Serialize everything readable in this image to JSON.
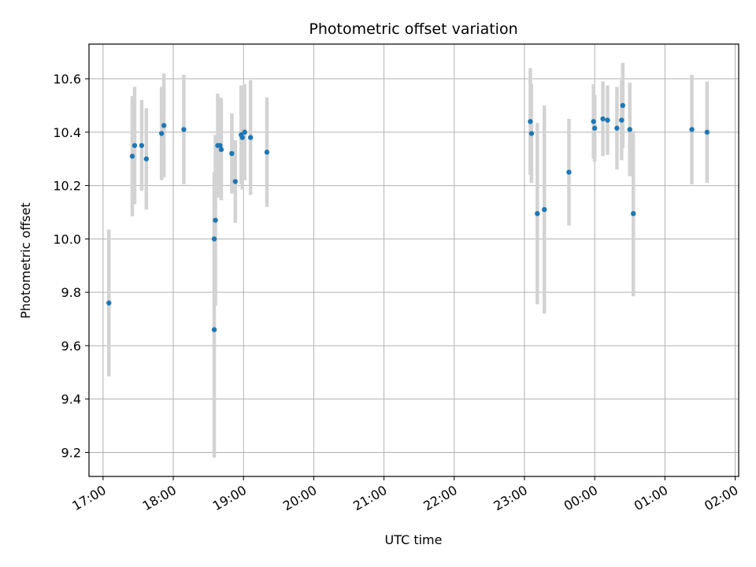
{
  "chart_data": {
    "type": "scatter",
    "title": "Photometric offset variation",
    "xlabel": "UTC time",
    "ylabel": "Photometric offset",
    "x_is_time": true,
    "xlim": [
      "16:48",
      "02:03"
    ],
    "ylim": [
      9.11,
      10.73
    ],
    "x_ticks": [
      "17:00",
      "18:00",
      "19:00",
      "20:00",
      "21:00",
      "22:00",
      "23:00",
      "00:00",
      "01:00",
      "02:00"
    ],
    "y_ticks": [
      9.2,
      9.4,
      9.6,
      9.8,
      10.0,
      10.2,
      10.4,
      10.6
    ],
    "grid": true,
    "marker_color": "#1f77b4",
    "errorbar_color": "#d3d3d3",
    "series": [
      {
        "points": [
          {
            "x": "17:05",
            "y": 9.76,
            "err": 0.275
          },
          {
            "x": "17:25",
            "y": 10.31,
            "err": 0.225
          },
          {
            "x": "17:27",
            "y": 10.35,
            "err": 0.22
          },
          {
            "x": "17:33",
            "y": 10.35,
            "err": 0.17
          },
          {
            "x": "17:37",
            "y": 10.3,
            "err": 0.19
          },
          {
            "x": "17:50",
            "y": 10.395,
            "err": 0.175
          },
          {
            "x": "17:52",
            "y": 10.425,
            "err": 0.195
          },
          {
            "x": "18:09",
            "y": 10.41,
            "err": 0.205
          },
          {
            "x": "18:35",
            "y": 9.66,
            "err": 0.48
          },
          {
            "x": "18:35",
            "y": 10.0,
            "err": 0.25
          },
          {
            "x": "18:36",
            "y": 10.07,
            "err": 0.32
          },
          {
            "x": "18:38",
            "y": 10.35,
            "err": 0.195
          },
          {
            "x": "18:40",
            "y": 10.35,
            "err": 0.18
          },
          {
            "x": "18:41",
            "y": 10.335,
            "err": 0.19
          },
          {
            "x": "18:50",
            "y": 10.32,
            "err": 0.15
          },
          {
            "x": "18:53",
            "y": 10.215,
            "err": 0.155
          },
          {
            "x": "18:58",
            "y": 10.39,
            "err": 0.185
          },
          {
            "x": "18:59",
            "y": 10.38,
            "err": 0.195
          },
          {
            "x": "19:01",
            "y": 10.4,
            "err": 0.18
          },
          {
            "x": "19:06",
            "y": 10.38,
            "err": 0.215
          },
          {
            "x": "19:20",
            "y": 10.325,
            "err": 0.205
          },
          {
            "x": "23:05",
            "y": 10.44,
            "err": 0.2
          },
          {
            "x": "23:06",
            "y": 10.395,
            "err": 0.185
          },
          {
            "x": "23:11",
            "y": 10.095,
            "err": 0.34
          },
          {
            "x": "23:17",
            "y": 10.11,
            "err": 0.39
          },
          {
            "x": "23:38",
            "y": 10.25,
            "err": 0.2
          },
          {
            "x": "23:59",
            "y": 10.44,
            "err": 0.14
          },
          {
            "x": "00:00",
            "y": 10.415,
            "err": 0.125
          },
          {
            "x": "00:07",
            "y": 10.45,
            "err": 0.14
          },
          {
            "x": "00:11",
            "y": 10.445,
            "err": 0.13
          },
          {
            "x": "00:19",
            "y": 10.415,
            "err": 0.155
          },
          {
            "x": "00:23",
            "y": 10.445,
            "err": 0.15
          },
          {
            "x": "00:24",
            "y": 10.5,
            "err": 0.16
          },
          {
            "x": "00:30",
            "y": 10.41,
            "err": 0.175
          },
          {
            "x": "00:33",
            "y": 10.095,
            "err": 0.31
          },
          {
            "x": "01:23",
            "y": 10.41,
            "err": 0.205
          },
          {
            "x": "01:36",
            "y": 10.4,
            "err": 0.19
          }
        ]
      }
    ]
  }
}
